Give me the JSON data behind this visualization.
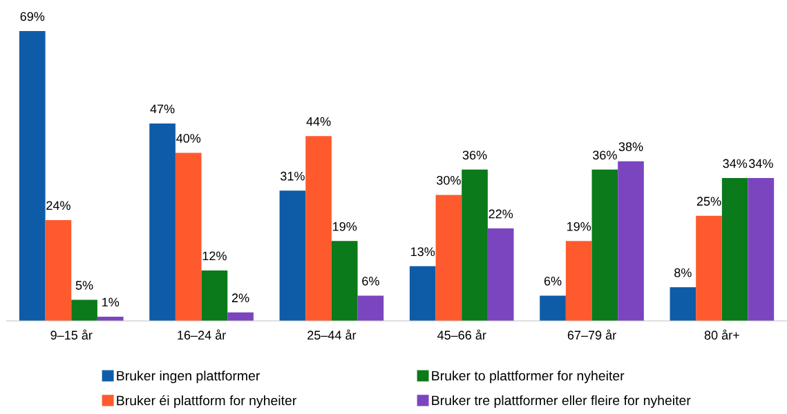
{
  "chart_data": {
    "type": "bar",
    "categories": [
      "9–15 år",
      "16–24 år",
      "25–44 år",
      "45–66 år",
      "67–79 år",
      "80 år+"
    ],
    "series": [
      {
        "name": "Bruker ingen plattformer",
        "color": "#0e5ca8",
        "values": [
          69,
          47,
          31,
          13,
          6,
          8
        ],
        "value_labels": [
          "69%",
          "47%",
          "31%",
          "13%",
          "6%",
          "8%"
        ]
      },
      {
        "name": "Bruker éi plattform for nyheiter",
        "color": "#ff5a2d",
        "values": [
          24,
          40,
          44,
          30,
          19,
          25
        ],
        "value_labels": [
          "24%",
          "40%",
          "44%",
          "30%",
          "19%",
          "25%"
        ]
      },
      {
        "name": "Bruker to plattformer for nyheiter",
        "color": "#0a7a1a",
        "values": [
          5,
          12,
          19,
          36,
          36,
          34
        ],
        "value_labels": [
          "5%",
          "12%",
          "19%",
          "36%",
          "36%",
          "34%"
        ]
      },
      {
        "name": "Bruker tre plattformer eller fleire for nyheiter",
        "color": "#7b45c0",
        "values": [
          1,
          2,
          6,
          22,
          38,
          34
        ],
        "value_labels": [
          "1%",
          "2%",
          "6%",
          "22%",
          "38%",
          "34%"
        ]
      }
    ],
    "grid": false,
    "legend": "bottom",
    "tick_labels": "x"
  }
}
